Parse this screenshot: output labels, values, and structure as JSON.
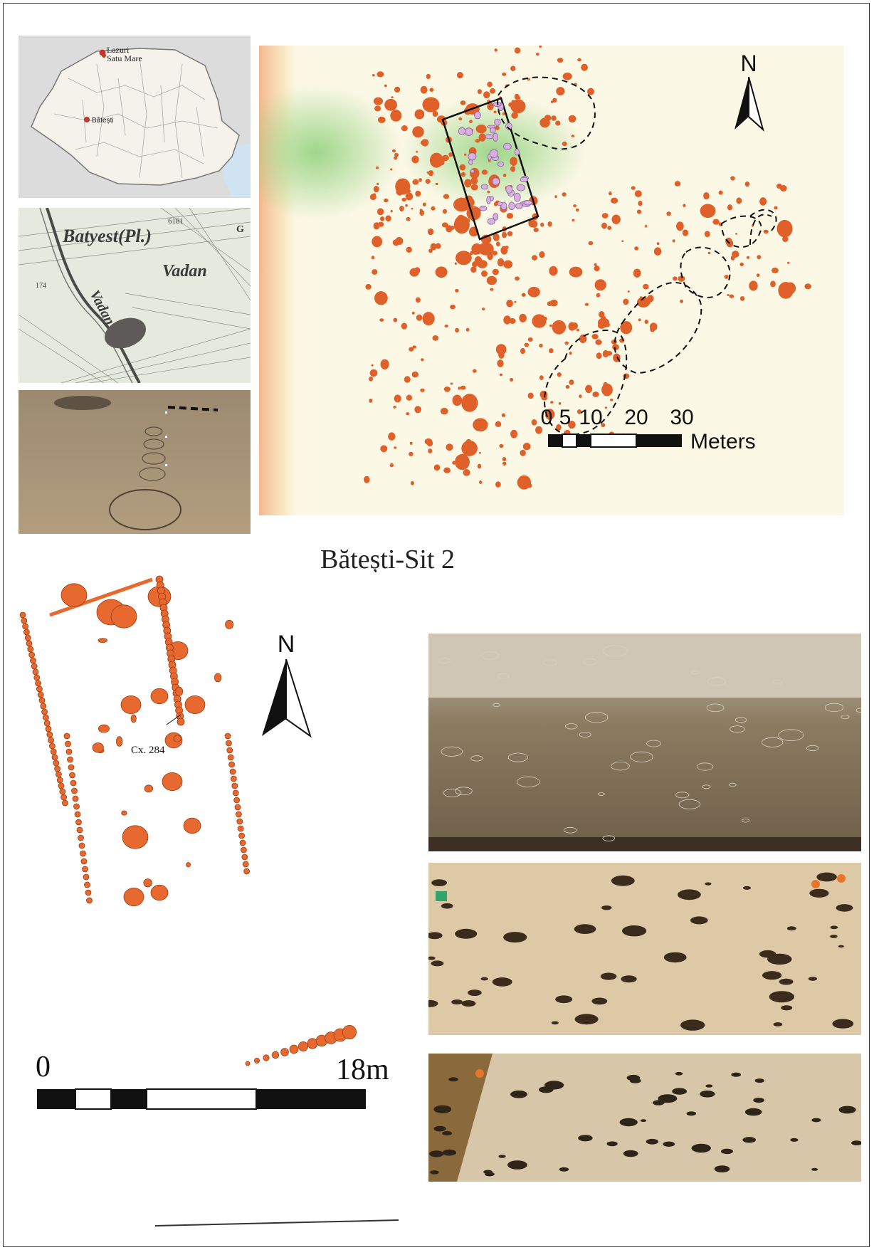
{
  "site_title": "Bătești-Sit 2",
  "locator_map": {
    "places": [
      "Lazuri",
      "Satu Mare",
      "Bătești"
    ],
    "colors": {
      "land": "#f4f2ea",
      "sea": "#cfe3f0",
      "outside": "#dcdcdc",
      "marker": "#c0392b"
    }
  },
  "historic_map": {
    "labels": [
      "Batyest(Pl.)",
      "Vadan",
      "Vadan",
      "6181",
      "G",
      "174"
    ]
  },
  "site_plan": {
    "north_label": "N",
    "scale_ticks": [
      "0",
      "5",
      "10",
      "20",
      "30"
    ],
    "scale_unit": "Meters",
    "colors": {
      "feature": "#e0602a",
      "house_feature": "#d8b0e0",
      "green": "#8fd07a",
      "background": "#fbf8e6"
    }
  },
  "house_plan": {
    "north_label": "N",
    "feature_label": "Cx. 284",
    "scale_start": "0",
    "scale_end": "18m",
    "colors": {
      "feature": "#e8692f",
      "outline": "#9a3d12"
    }
  },
  "photos": [
    {
      "name": "photo-excavation-1"
    },
    {
      "name": "photo-excavation-2"
    },
    {
      "name": "photo-excavation-3"
    }
  ]
}
